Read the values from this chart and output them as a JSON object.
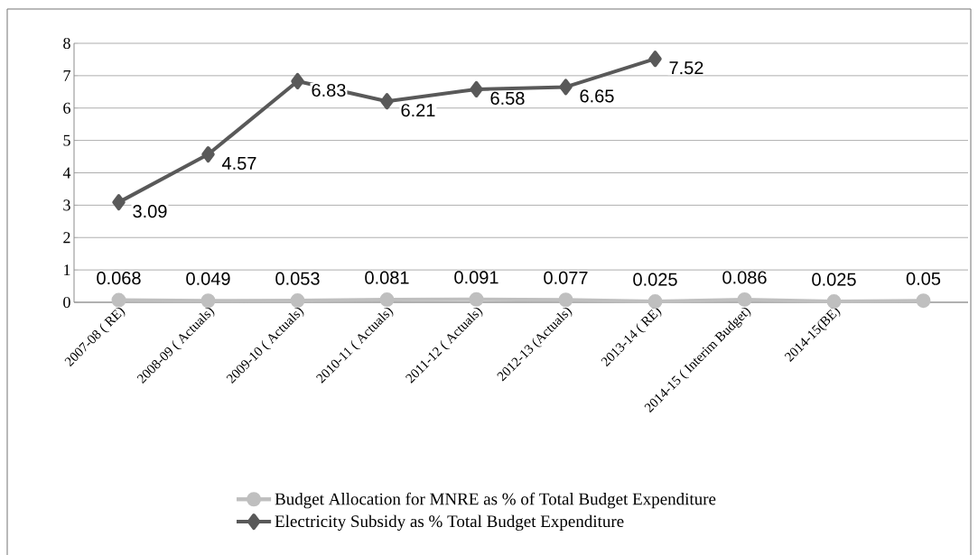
{
  "chart_data": {
    "type": "line",
    "categories": [
      "2007-08 ( RE)",
      "2008-09 ( Actuals)",
      "2009-10 ( Actuals)",
      "2010-11 ( Actuals)",
      "2011-12 ( Actuals)",
      "2012-13 (Actuals)",
      "2013-14 ( RE)",
      "2014-15 ( Interim Budget)",
      "2014-15(BE)",
      null
    ],
    "series": [
      {
        "name": "Budget Allocation for MNRE as  % of Total Budget Expenditure",
        "color": "#bfbfbf",
        "marker": "circle",
        "values": [
          0.068,
          0.049,
          0.053,
          0.081,
          0.091,
          0.077,
          0.025,
          0.086,
          0.025,
          0.05
        ]
      },
      {
        "name": "Electricity Subsidy as % Total Budget Expenditure",
        "color": "#595959",
        "marker": "diamond",
        "values": [
          3.09,
          4.57,
          6.83,
          6.21,
          6.58,
          6.65,
          7.52,
          null,
          null,
          null
        ]
      }
    ],
    "ylim": [
      0,
      8
    ],
    "yticks": [
      0,
      1,
      2,
      3,
      4,
      5,
      6,
      7,
      8
    ],
    "grid": "y",
    "legend": "bottom",
    "data_labels": true
  }
}
